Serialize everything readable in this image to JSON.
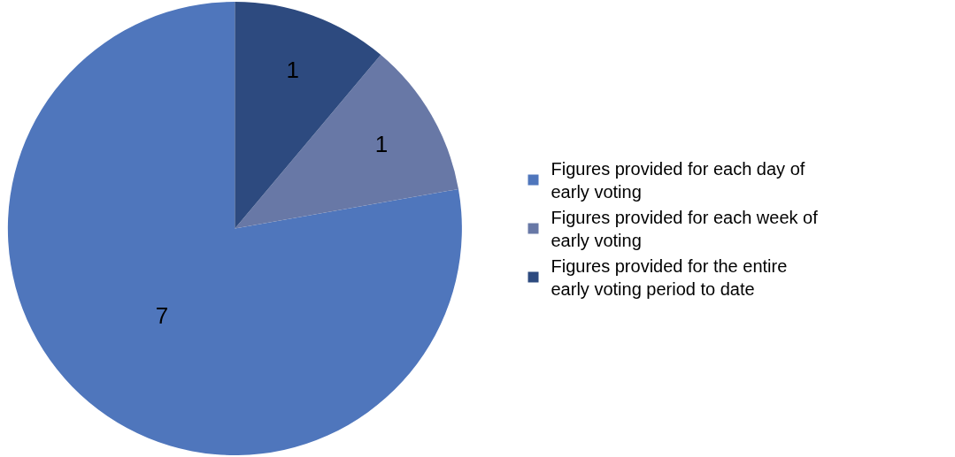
{
  "chart_data": {
    "type": "pie",
    "categories": [
      "Figures provided for each day of early voting",
      "Figures provided for each week of early voting",
      "Figures provided for the entire early voting period to date"
    ],
    "values": [
      7,
      1,
      1
    ],
    "colors": [
      "#4f76bc",
      "#6878a6",
      "#2d4a7f"
    ],
    "data_labels": true,
    "legend": "right"
  }
}
